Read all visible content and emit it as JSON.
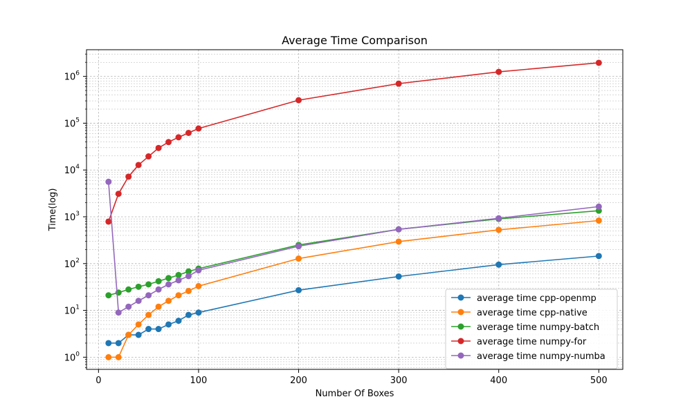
{
  "chart_data": {
    "type": "line",
    "title": "Average Time Comparison",
    "xlabel": "Number Of Boxes",
    "ylabel": "Time(log)",
    "yscale": "log",
    "xlim": [
      -12,
      524
    ],
    "ylim_log10": [
      -0.26,
      6.57
    ],
    "grid": true,
    "legend_position": "lower-right",
    "x_ticks": [
      0,
      100,
      200,
      300,
      400,
      500
    ],
    "x_tick_labels": [
      "0",
      "100",
      "200",
      "300",
      "400",
      "500"
    ],
    "y_ticks": [
      0,
      1,
      2,
      3,
      4,
      5,
      6
    ],
    "y_tick_base": "10",
    "y_tick_exponents": [
      "0",
      "1",
      "2",
      "3",
      "4",
      "5",
      "6"
    ],
    "series": [
      {
        "name": "average time cpp-openmp",
        "color": "#1f77b4",
        "x": [
          10,
          20,
          30,
          40,
          50,
          60,
          70,
          80,
          90,
          100,
          200,
          300,
          400,
          500
        ],
        "y": [
          2,
          2,
          3,
          3,
          4,
          4,
          5,
          6,
          8,
          9,
          27,
          53,
          95,
          145
        ]
      },
      {
        "name": "average time cpp-native",
        "color": "#ff7f0e",
        "x": [
          10,
          20,
          30,
          40,
          50,
          60,
          70,
          80,
          90,
          100,
          200,
          300,
          400,
          500
        ],
        "y": [
          1,
          1,
          3,
          5,
          8,
          12,
          16,
          21,
          26,
          33,
          128,
          295,
          525,
          830
        ]
      },
      {
        "name": "average time numpy-batch",
        "color": "#2ca02c",
        "x": [
          10,
          20,
          30,
          40,
          50,
          60,
          70,
          80,
          90,
          100,
          200,
          300,
          400,
          500
        ],
        "y": [
          21,
          24,
          28,
          32,
          36,
          42,
          49,
          57,
          68,
          78,
          250,
          540,
          900,
          1350
        ]
      },
      {
        "name": "average time numpy-for",
        "color": "#d62728",
        "x": [
          10,
          20,
          30,
          40,
          50,
          60,
          70,
          80,
          90,
          100,
          200,
          300,
          400,
          500
        ],
        "y": [
          790,
          3100,
          7200,
          12800,
          19500,
          29500,
          39500,
          50000,
          62000,
          77000,
          310000,
          700000,
          1250000,
          1950000
        ]
      },
      {
        "name": "average time numpy-numba",
        "color": "#9467bd",
        "x": [
          10,
          20,
          30,
          40,
          50,
          60,
          70,
          80,
          90,
          100,
          200,
          300,
          400,
          500
        ],
        "y": [
          5600,
          9,
          12,
          16,
          21,
          28,
          36,
          44,
          54,
          72,
          235,
          540,
          930,
          1650
        ]
      }
    ]
  }
}
